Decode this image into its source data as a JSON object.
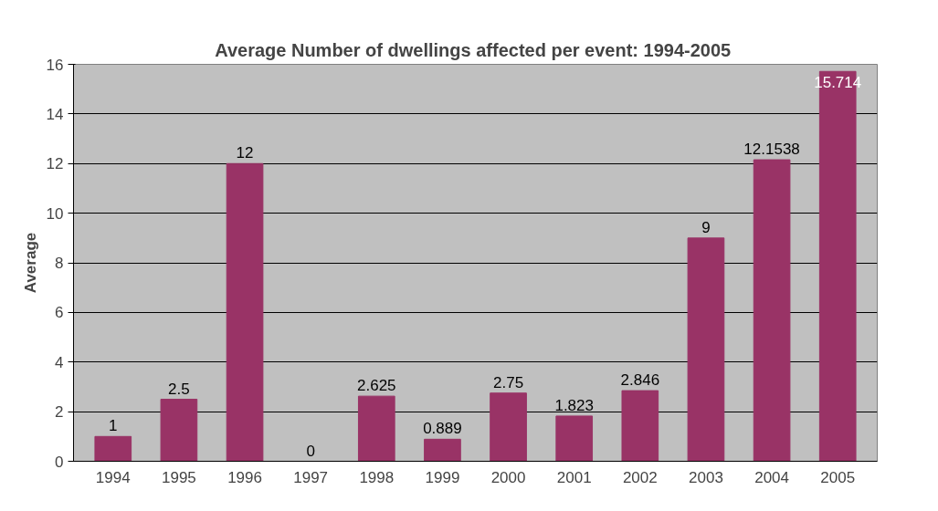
{
  "chart_data": {
    "type": "bar",
    "title": "Average Number of dwellings affected  per event: 1994-2005",
    "ylabel": "Average",
    "categories": [
      "1994",
      "1995",
      "1996",
      "1997",
      "1998",
      "1999",
      "2000",
      "2001",
      "2002",
      "2003",
      "2004",
      "2005"
    ],
    "values": [
      1,
      2.5,
      12,
      0,
      2.625,
      0.889,
      2.75,
      1.823,
      2.846,
      9,
      12.1538,
      15.714
    ],
    "color": "#993366",
    "ylim": [
      0,
      16
    ],
    "yticks": [
      0,
      2,
      4,
      6,
      8,
      10,
      12,
      14,
      16
    ],
    "grid": "y",
    "data_labels": true
  }
}
